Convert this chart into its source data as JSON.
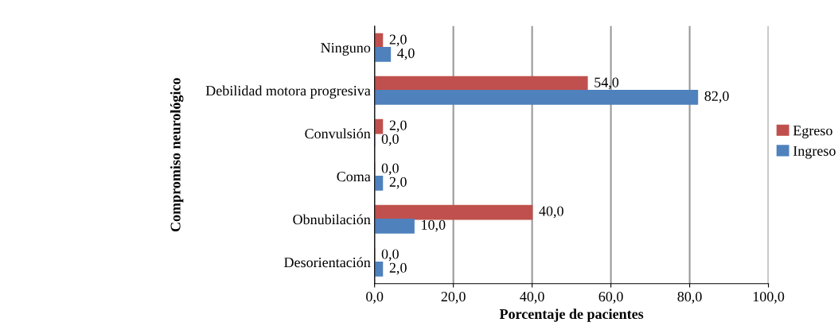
{
  "chart_data": {
    "type": "bar",
    "orientation": "horizontal",
    "xlabel": "Porcentaje de pacientes",
    "ylabel": "Compromiso neurológico",
    "categories": [
      "Ninguno",
      "Debilidad motora progresiva",
      "Convulsión",
      "Coma",
      "Obnubilación",
      "Desorientación"
    ],
    "series": [
      {
        "name": "Egreso",
        "color": "#c0504d",
        "values": [
          2,
          54,
          2,
          0,
          40,
          0
        ],
        "value_labels": [
          "2,0",
          "54,0",
          "2,0",
          "0,0",
          "40,0",
          "0,0"
        ]
      },
      {
        "name": "Ingreso",
        "color": "#4f81bd",
        "values": [
          4,
          82,
          0,
          2,
          10,
          2
        ],
        "value_labels": [
          "4,0",
          "82,0",
          "0,0",
          "2,0",
          "10,0",
          "2,0"
        ]
      }
    ],
    "xlim": [
      0,
      100
    ],
    "xticks": [
      {
        "value": 0,
        "label": "0,0"
      },
      {
        "value": 20,
        "label": "20,0"
      },
      {
        "value": 40,
        "label": "40,0"
      },
      {
        "value": 60,
        "label": "60,0"
      },
      {
        "value": 80,
        "label": "80,0"
      },
      {
        "value": 100,
        "label": "100,0"
      }
    ],
    "grid": "x",
    "legend": "right"
  }
}
